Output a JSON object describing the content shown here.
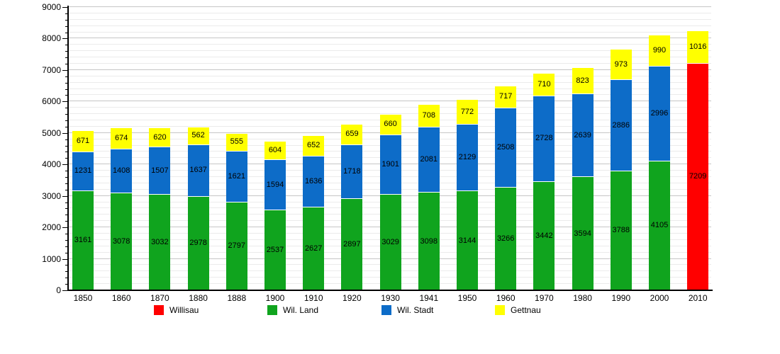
{
  "chart_data": {
    "type": "bar",
    "stacked": true,
    "title": "",
    "xlabel": "",
    "ylabel": "",
    "ylim": [
      0,
      9000
    ],
    "y_major_step": 1000,
    "y_minor_step": 200,
    "grid": true,
    "legend_position": "bottom",
    "categories": [
      "1850",
      "1860",
      "1870",
      "1880",
      "1888",
      "1900",
      "1910",
      "1920",
      "1930",
      "1941",
      "1950",
      "1960",
      "1970",
      "1980",
      "1990",
      "2000",
      "2010"
    ],
    "series": [
      {
        "name": "Wil. Land",
        "color": "#10a41e",
        "values": [
          3161,
          3078,
          3032,
          2978,
          2797,
          2537,
          2627,
          2897,
          3029,
          3098,
          3144,
          3266,
          3442,
          3594,
          3788,
          4105,
          null
        ]
      },
      {
        "name": "Wil. Stadt",
        "color": "#0d6cc8",
        "values": [
          1231,
          1408,
          1507,
          1637,
          1621,
          1594,
          1636,
          1718,
          1901,
          2081,
          2129,
          2508,
          2728,
          2639,
          2886,
          2996,
          null
        ]
      },
      {
        "name": "Willisau",
        "color": "#ff0000",
        "values": [
          null,
          null,
          null,
          null,
          null,
          null,
          null,
          null,
          null,
          null,
          null,
          null,
          null,
          null,
          null,
          null,
          7209
        ]
      },
      {
        "name": "Gettnau",
        "color": "#ffff00",
        "values": [
          671,
          674,
          620,
          562,
          555,
          604,
          652,
          659,
          660,
          708,
          772,
          717,
          710,
          823,
          973,
          990,
          1016
        ]
      }
    ],
    "legend": [
      {
        "label": "Willisau",
        "color": "#ff0000"
      },
      {
        "label": "Wil. Land",
        "color": "#10a41e"
      },
      {
        "label": "Wil. Stadt",
        "color": "#0d6cc8"
      },
      {
        "label": "Gettnau",
        "color": "#ffff00"
      }
    ],
    "colors": {
      "axis": "#000000",
      "grid_minor": "#ebebeb",
      "grid_major": "#c6c6c6",
      "background": "#ffffff"
    }
  }
}
